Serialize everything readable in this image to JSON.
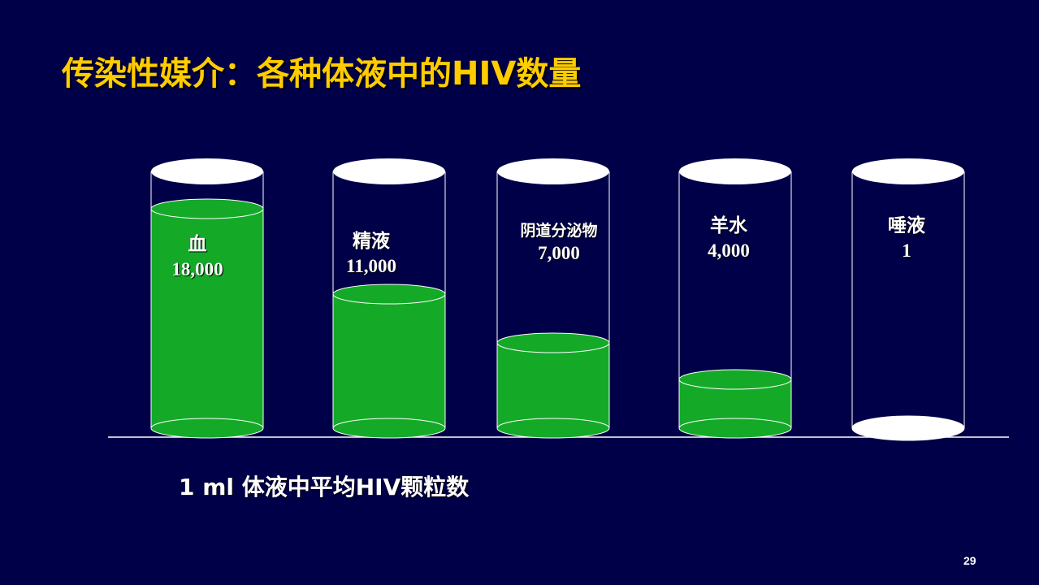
{
  "slide": {
    "title": "传染性媒介：各种体液中的HIV数量",
    "caption": "1 ml 体液中平均HIV颗粒数",
    "page_number": "29"
  },
  "colors": {
    "background": "#000048",
    "title": "#FFCC00",
    "liquid": "#14AA28",
    "cylinder_outline": "#FFFFFF",
    "text": "#FFFFFF"
  },
  "chart_data": {
    "type": "bar",
    "style": "3d-cylinder",
    "categories": [
      "血",
      "精液",
      "阴道分泌物",
      "羊水",
      "唾液"
    ],
    "values": [
      18000,
      11000,
      7000,
      4000,
      1
    ],
    "value_labels": [
      "18,000",
      "11,000",
      "7,000",
      "4,000",
      "1"
    ],
    "ylim": [
      0,
      22000
    ],
    "xlabel": "1 ml 体液中平均HIV颗粒数",
    "ylabel": "",
    "grid": false
  }
}
